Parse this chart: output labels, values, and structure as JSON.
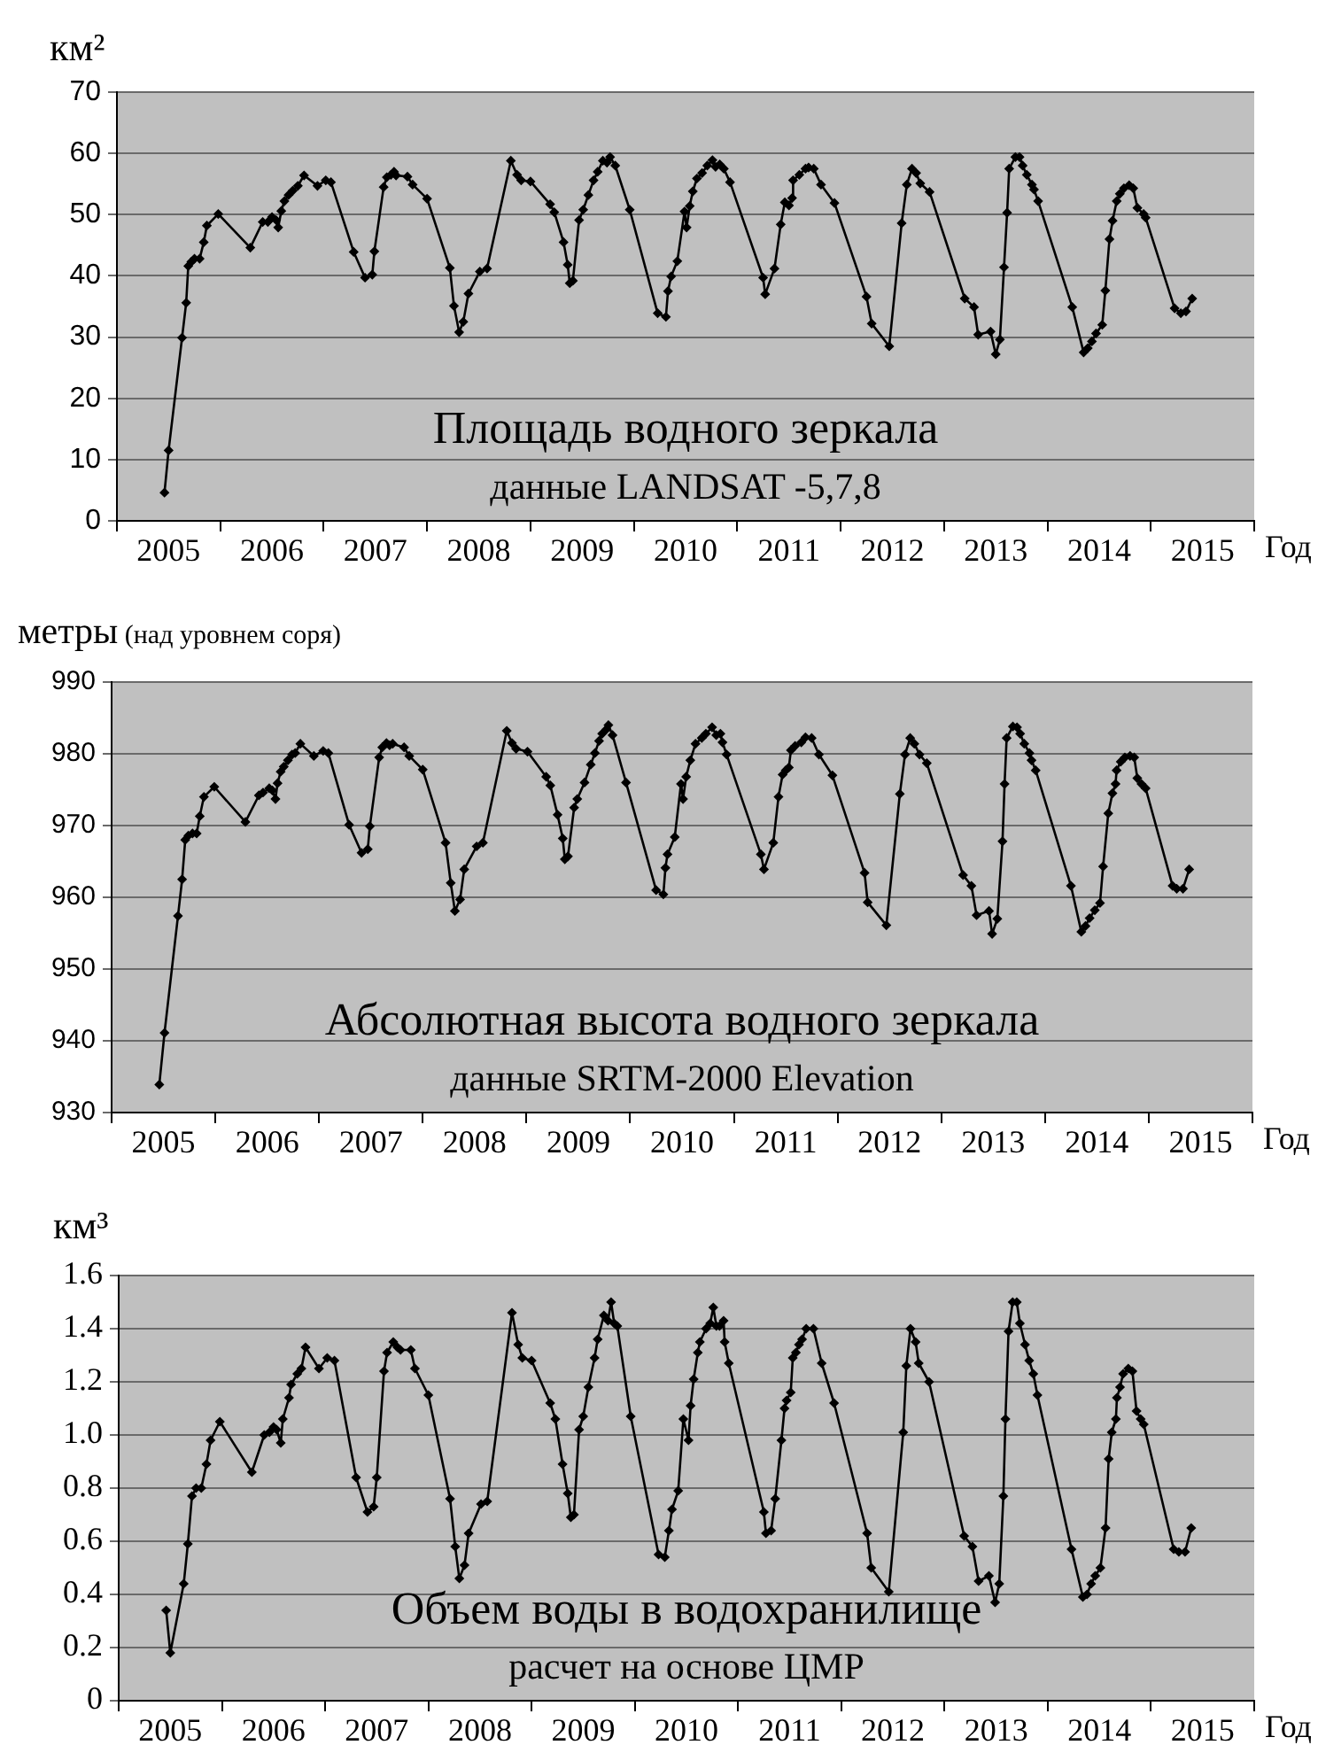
{
  "chart_data": [
    {
      "type": "line",
      "title": "Площадь водного зеркала",
      "annotations": [
        "данные LANDSAT -5,7,8"
      ],
      "ylabel": "км²",
      "xlabel": "Год",
      "color": "#000000",
      "marker": "diamond",
      "line_style": "solid",
      "grid": "y",
      "xlim": [
        2005,
        2016
      ],
      "xticks": [
        {
          "value": 2005,
          "label": null
        },
        {
          "value": 2005.5,
          "label": "2005"
        },
        {
          "value": 2006,
          "label": null
        },
        {
          "value": 2006.5,
          "label": "2006"
        },
        {
          "value": 2007,
          "label": null
        },
        {
          "value": 2007.5,
          "label": "2007"
        },
        {
          "value": 2008,
          "label": null
        },
        {
          "value": 2008.5,
          "label": "2008"
        },
        {
          "value": 2009,
          "label": null
        },
        {
          "value": 2009.5,
          "label": "2009"
        },
        {
          "value": 2010,
          "label": null
        },
        {
          "value": 2010.5,
          "label": "2010"
        },
        {
          "value": 2011,
          "label": null
        },
        {
          "value": 2011.5,
          "label": "2011"
        },
        {
          "value": 2012,
          "label": null
        },
        {
          "value": 2012.5,
          "label": "2012"
        },
        {
          "value": 2013,
          "label": null
        },
        {
          "value": 2013.5,
          "label": "2013"
        },
        {
          "value": 2014,
          "label": null
        },
        {
          "value": 2014.5,
          "label": "2014"
        },
        {
          "value": 2015,
          "label": null
        },
        {
          "value": 2015.5,
          "label": "2015"
        },
        {
          "value": 2016,
          "label": null
        }
      ],
      "ylim": [
        0,
        70
      ],
      "yticks": [
        0,
        10,
        20,
        30,
        40,
        50,
        60,
        70
      ],
      "x": [
        2005.46,
        2005.5,
        2005.63,
        2005.67,
        2005.69,
        2005.72,
        2005.75,
        2005.8,
        2005.84,
        2005.87,
        2005.98,
        2006.29,
        2006.41,
        2006.46,
        2006.5,
        2006.54,
        2006.56,
        2006.59,
        2006.62,
        2006.66,
        2006.7,
        2006.75,
        2006.81,
        2006.94,
        2007.02,
        2007.07,
        2007.29,
        2007.4,
        2007.47,
        2007.49,
        2007.58,
        2007.61,
        2007.65,
        2007.68,
        2007.7,
        2007.81,
        2007.86,
        2008.0,
        2008.22,
        2008.26,
        2008.31,
        2008.35,
        2008.4,
        2008.51,
        2008.58,
        2008.81,
        2008.87,
        2008.91,
        2009.0,
        2009.19,
        2009.23,
        2009.32,
        2009.36,
        2009.38,
        2009.41,
        2009.47,
        2009.51,
        2009.56,
        2009.61,
        2009.65,
        2009.7,
        2009.74,
        2009.77,
        2009.82,
        2009.96,
        2010.23,
        2010.31,
        2010.33,
        2010.36,
        2010.42,
        2010.49,
        2010.51,
        2010.54,
        2010.57,
        2010.61,
        2010.66,
        2010.71,
        2010.76,
        2010.79,
        2010.83,
        2010.87,
        2010.93,
        2011.25,
        2011.27,
        2011.36,
        2011.42,
        2011.46,
        2011.5,
        2011.53,
        2011.54,
        2011.6,
        2011.66,
        2011.69,
        2011.74,
        2011.81,
        2011.94,
        2012.25,
        2012.3,
        2012.47,
        2012.59,
        2012.64,
        2012.69,
        2012.73,
        2012.77,
        2012.86,
        2013.2,
        2013.29,
        2013.33,
        2013.45,
        2013.5,
        2013.54,
        2013.58,
        2013.61,
        2013.63,
        2013.69,
        2013.73,
        2013.76,
        2013.8,
        2013.85,
        2013.87,
        2013.91,
        2014.24,
        2014.35,
        2014.39,
        2014.43,
        2014.47,
        2014.53,
        2014.56,
        2014.6,
        2014.63,
        2014.67,
        2014.7,
        2014.74,
        2014.79,
        2014.83,
        2014.87,
        2014.93,
        2014.95,
        2015.23,
        2015.29,
        2015.34,
        2015.4
      ],
      "values": [
        4.6,
        11.5,
        29.9,
        35.6,
        41.6,
        42.3,
        42.8,
        42.8,
        45.5,
        48.2,
        50.1,
        44.6,
        48.8,
        48.8,
        49.6,
        49.1,
        47.9,
        50.6,
        52.2,
        53.2,
        53.9,
        54.7,
        56.4,
        54.7,
        55.6,
        55.3,
        43.9,
        39.7,
        40.2,
        44.0,
        54.5,
        56.1,
        56.5,
        57.0,
        56.4,
        56.2,
        54.9,
        52.6,
        41.3,
        35.1,
        30.8,
        32.5,
        37.1,
        40.7,
        41.2,
        58.8,
        56.5,
        55.6,
        55.4,
        51.7,
        50.4,
        45.5,
        41.8,
        38.8,
        39.2,
        49.1,
        50.8,
        53.2,
        55.6,
        57.0,
        58.8,
        58.5,
        59.4,
        58.0,
        50.8,
        33.9,
        33.3,
        37.5,
        39.9,
        42.4,
        50.5,
        47.9,
        51.4,
        53.8,
        55.9,
        56.8,
        58.0,
        58.9,
        57.8,
        58.2,
        57.5,
        55.3,
        39.7,
        37.0,
        41.2,
        48.4,
        52.0,
        51.5,
        52.7,
        55.6,
        56.5,
        57.5,
        57.7,
        57.5,
        54.9,
        51.9,
        36.6,
        32.2,
        28.5,
        48.6,
        54.9,
        57.5,
        56.8,
        55.1,
        53.7,
        36.3,
        34.9,
        30.4,
        30.9,
        27.2,
        29.6,
        41.4,
        50.3,
        57.5,
        59.4,
        59.4,
        58.0,
        56.5,
        54.9,
        54.1,
        52.2,
        34.9,
        27.5,
        28.2,
        29.3,
        30.6,
        32.0,
        37.6,
        46.0,
        49.0,
        52.2,
        53.4,
        54.3,
        54.8,
        54.3,
        51.1,
        50.1,
        49.5,
        34.7,
        33.9,
        34.2,
        36.3
      ]
    },
    {
      "type": "line",
      "title": "Абсолютная высота водного зеркала",
      "annotations": [
        "данные SRTM-2000 Elevation"
      ],
      "ylabel": "метры (над уровнем соря)",
      "xlabel": "Год",
      "color": "#000000",
      "marker": "diamond",
      "line_style": "solid",
      "grid": "y",
      "xlim": [
        2005,
        2016
      ],
      "xticks": [
        {
          "value": 2005,
          "label": null
        },
        {
          "value": 2005.5,
          "label": "2005"
        },
        {
          "value": 2006,
          "label": null
        },
        {
          "value": 2006.5,
          "label": "2006"
        },
        {
          "value": 2007,
          "label": null
        },
        {
          "value": 2007.5,
          "label": "2007"
        },
        {
          "value": 2008,
          "label": null
        },
        {
          "value": 2008.5,
          "label": "2008"
        },
        {
          "value": 2009,
          "label": null
        },
        {
          "value": 2009.5,
          "label": "2009"
        },
        {
          "value": 2010,
          "label": null
        },
        {
          "value": 2010.5,
          "label": "2010"
        },
        {
          "value": 2011,
          "label": null
        },
        {
          "value": 2011.5,
          "label": "2011"
        },
        {
          "value": 2012,
          "label": null
        },
        {
          "value": 2012.5,
          "label": "2012"
        },
        {
          "value": 2013,
          "label": null
        },
        {
          "value": 2013.5,
          "label": "2013"
        },
        {
          "value": 2014,
          "label": null
        },
        {
          "value": 2014.5,
          "label": "2014"
        },
        {
          "value": 2015,
          "label": null
        },
        {
          "value": 2015.5,
          "label": "2015"
        },
        {
          "value": 2016,
          "label": null
        }
      ],
      "ylim": [
        930,
        990
      ],
      "yticks": [
        930,
        940,
        950,
        960,
        970,
        980,
        990
      ],
      "x": [
        2005.46,
        2005.51,
        2005.64,
        2005.68,
        2005.71,
        2005.74,
        2005.78,
        2005.82,
        2005.85,
        2005.89,
        2005.99,
        2006.29,
        2006.42,
        2006.46,
        2006.52,
        2006.55,
        2006.58,
        2006.6,
        2006.63,
        2006.66,
        2006.7,
        2006.74,
        2006.77,
        2006.82,
        2006.95,
        2007.04,
        2007.09,
        2007.29,
        2007.41,
        2007.47,
        2007.49,
        2007.58,
        2007.61,
        2007.65,
        2007.68,
        2007.71,
        2007.82,
        2007.87,
        2008.0,
        2008.22,
        2008.27,
        2008.31,
        2008.36,
        2008.4,
        2008.52,
        2008.58,
        2008.81,
        2008.86,
        2008.9,
        2009.01,
        2009.19,
        2009.23,
        2009.3,
        2009.35,
        2009.37,
        2009.4,
        2009.46,
        2009.49,
        2009.56,
        2009.62,
        2009.66,
        2009.7,
        2009.73,
        2009.77,
        2009.79,
        2009.83,
        2009.96,
        2010.25,
        2010.32,
        2010.34,
        2010.36,
        2010.43,
        2010.49,
        2010.51,
        2010.54,
        2010.58,
        2010.63,
        2010.69,
        2010.73,
        2010.79,
        2010.83,
        2010.87,
        2010.89,
        2010.93,
        2011.26,
        2011.29,
        2011.38,
        2011.43,
        2011.47,
        2011.5,
        2011.53,
        2011.55,
        2011.59,
        2011.65,
        2011.69,
        2011.75,
        2011.82,
        2011.95,
        2012.26,
        2012.29,
        2012.47,
        2012.6,
        2012.65,
        2012.7,
        2012.74,
        2012.79,
        2012.86,
        2013.21,
        2013.29,
        2013.34,
        2013.46,
        2013.49,
        2013.54,
        2013.59,
        2013.61,
        2013.63,
        2013.69,
        2013.73,
        2013.76,
        2013.8,
        2013.85,
        2013.87,
        2013.91,
        2014.25,
        2014.35,
        2014.39,
        2014.43,
        2014.48,
        2014.53,
        2014.56,
        2014.61,
        2014.65,
        2014.68,
        2014.69,
        2014.73,
        2014.77,
        2014.82,
        2014.86,
        2014.89,
        2014.93,
        2014.97,
        2015.23,
        2015.27,
        2015.33,
        2015.39
      ],
      "values": [
        933.9,
        941.1,
        957.4,
        962.5,
        968.0,
        968.6,
        968.9,
        968.9,
        971.3,
        974.0,
        975.4,
        970.5,
        974.2,
        974.6,
        975.2,
        974.9,
        973.7,
        975.9,
        977.5,
        978.2,
        979.1,
        979.9,
        980.1,
        981.4,
        979.7,
        980.4,
        980.1,
        970.1,
        966.2,
        966.7,
        969.9,
        979.5,
        980.9,
        981.5,
        981.2,
        981.4,
        980.9,
        979.7,
        977.8,
        967.6,
        962.0,
        958.1,
        959.7,
        963.9,
        967.1,
        967.6,
        983.2,
        981.5,
        980.7,
        980.3,
        976.8,
        975.6,
        971.5,
        968.2,
        965.3,
        965.7,
        972.5,
        973.7,
        976.0,
        978.5,
        980.1,
        981.8,
        982.8,
        983.4,
        984.0,
        982.6,
        976.0,
        961.0,
        960.4,
        964.1,
        966.0,
        968.4,
        975.8,
        973.7,
        976.8,
        979.1,
        981.4,
        982.2,
        982.8,
        983.7,
        982.6,
        982.8,
        981.6,
        979.9,
        966.0,
        963.9,
        967.6,
        974.0,
        977.1,
        977.7,
        978.1,
        980.5,
        981.1,
        981.6,
        982.3,
        982.2,
        979.9,
        977.0,
        963.4,
        959.3,
        956.1,
        974.4,
        979.9,
        982.2,
        981.4,
        979.9,
        978.7,
        963.1,
        961.6,
        957.5,
        958.1,
        954.9,
        957.0,
        967.8,
        975.8,
        982.2,
        983.8,
        983.7,
        982.8,
        981.4,
        980.1,
        979.1,
        977.7,
        961.6,
        955.2,
        956.0,
        957.1,
        958.2,
        959.2,
        964.3,
        971.7,
        974.5,
        975.8,
        977.7,
        978.9,
        979.5,
        979.7,
        979.5,
        976.6,
        975.8,
        975.2,
        961.6,
        961.2,
        961.2,
        963.9
      ]
    },
    {
      "type": "line",
      "title": "Объем воды в водохранилище",
      "annotations": [
        "расчет на основе ЦМР"
      ],
      "ylabel": "км³",
      "xlabel": "Год",
      "color": "#000000",
      "marker": "diamond",
      "line_style": "solid",
      "grid": "y",
      "xlim": [
        2005,
        2016
      ],
      "xticks": [
        {
          "value": 2005,
          "label": null
        },
        {
          "value": 2005.5,
          "label": "2005"
        },
        {
          "value": 2006,
          "label": null
        },
        {
          "value": 2006.5,
          "label": "2006"
        },
        {
          "value": 2007,
          "label": null
        },
        {
          "value": 2007.5,
          "label": "2007"
        },
        {
          "value": 2008,
          "label": null
        },
        {
          "value": 2008.5,
          "label": "2008"
        },
        {
          "value": 2009,
          "label": null
        },
        {
          "value": 2009.5,
          "label": "2009"
        },
        {
          "value": 2010,
          "label": null
        },
        {
          "value": 2010.5,
          "label": "2010"
        },
        {
          "value": 2011,
          "label": null
        },
        {
          "value": 2011.5,
          "label": "2011"
        },
        {
          "value": 2012,
          "label": null
        },
        {
          "value": 2012.5,
          "label": "2012"
        },
        {
          "value": 2013,
          "label": null
        },
        {
          "value": 2013.5,
          "label": "2013"
        },
        {
          "value": 2014,
          "label": null
        },
        {
          "value": 2014.5,
          "label": "2014"
        },
        {
          "value": 2015,
          "label": null
        },
        {
          "value": 2015.5,
          "label": "2015"
        },
        {
          "value": 2016,
          "label": null
        }
      ],
      "ylim": [
        0,
        1.6
      ],
      "yticks": [
        0,
        0.2,
        0.4,
        0.6,
        0.8,
        {
          "value": 1,
          "label": "1.0"
        },
        1.2,
        1.4,
        1.6
      ],
      "x": [
        2005.46,
        2005.5,
        2005.63,
        2005.67,
        2005.71,
        2005.75,
        2005.8,
        2005.85,
        2005.89,
        2005.98,
        2006.29,
        2006.41,
        2006.46,
        2006.5,
        2006.53,
        2006.57,
        2006.59,
        2006.65,
        2006.67,
        2006.73,
        2006.77,
        2006.81,
        2006.94,
        2007.02,
        2007.09,
        2007.3,
        2007.41,
        2007.47,
        2007.5,
        2007.57,
        2007.6,
        2007.66,
        2007.7,
        2007.73,
        2007.83,
        2007.87,
        2008.0,
        2008.21,
        2008.26,
        2008.3,
        2008.35,
        2008.39,
        2008.51,
        2008.57,
        2008.81,
        2008.87,
        2008.91,
        2009.0,
        2009.18,
        2009.23,
        2009.3,
        2009.35,
        2009.38,
        2009.41,
        2009.46,
        2009.5,
        2009.55,
        2009.61,
        2009.64,
        2009.7,
        2009.74,
        2009.77,
        2009.8,
        2009.83,
        2009.96,
        2010.23,
        2010.29,
        2010.33,
        2010.36,
        2010.42,
        2010.47,
        2010.52,
        2010.54,
        2010.57,
        2010.61,
        2010.63,
        2010.69,
        2010.73,
        2010.76,
        2010.79,
        2010.82,
        2010.86,
        2010.87,
        2010.91,
        2011.25,
        2011.27,
        2011.32,
        2011.36,
        2011.42,
        2011.45,
        2011.47,
        2011.51,
        2011.53,
        2011.56,
        2011.59,
        2011.62,
        2011.66,
        2011.73,
        2011.81,
        2011.93,
        2012.25,
        2012.29,
        2012.46,
        2012.6,
        2012.63,
        2012.67,
        2012.72,
        2012.75,
        2012.85,
        2013.19,
        2013.27,
        2013.33,
        2013.43,
        2013.49,
        2013.53,
        2013.57,
        2013.59,
        2013.62,
        2013.66,
        2013.7,
        2013.73,
        2013.78,
        2013.82,
        2013.86,
        2013.9,
        2014.23,
        2014.34,
        2014.38,
        2014.42,
        2014.46,
        2014.51,
        2014.56,
        2014.59,
        2014.62,
        2014.66,
        2014.67,
        2014.7,
        2014.73,
        2014.78,
        2014.82,
        2014.86,
        2014.9,
        2014.93,
        2015.22,
        2015.27,
        2015.33,
        2015.39
      ],
      "values": [
        0.34,
        0.18,
        0.44,
        0.59,
        0.77,
        0.8,
        0.8,
        0.89,
        0.98,
        1.05,
        0.86,
        1.0,
        1.01,
        1.03,
        1.02,
        0.97,
        1.06,
        1.14,
        1.19,
        1.23,
        1.25,
        1.33,
        1.25,
        1.29,
        1.28,
        0.84,
        0.71,
        0.73,
        0.84,
        1.24,
        1.31,
        1.35,
        1.33,
        1.32,
        1.32,
        1.25,
        1.15,
        0.76,
        0.58,
        0.46,
        0.51,
        0.63,
        0.74,
        0.75,
        1.46,
        1.34,
        1.29,
        1.28,
        1.12,
        1.06,
        0.89,
        0.78,
        0.69,
        0.7,
        1.02,
        1.07,
        1.18,
        1.29,
        1.36,
        1.45,
        1.43,
        1.5,
        1.42,
        1.41,
        1.07,
        0.55,
        0.54,
        0.64,
        0.72,
        0.79,
        1.06,
        0.98,
        1.11,
        1.21,
        1.31,
        1.35,
        1.4,
        1.42,
        1.48,
        1.41,
        1.41,
        1.43,
        1.35,
        1.27,
        0.71,
        0.63,
        0.64,
        0.76,
        0.98,
        1.1,
        1.13,
        1.16,
        1.29,
        1.31,
        1.34,
        1.36,
        1.4,
        1.4,
        1.27,
        1.12,
        0.63,
        0.5,
        0.41,
        1.01,
        1.26,
        1.4,
        1.35,
        1.27,
        1.2,
        0.62,
        0.58,
        0.45,
        0.47,
        0.37,
        0.44,
        0.77,
        1.06,
        1.39,
        1.5,
        1.5,
        1.42,
        1.34,
        1.28,
        1.23,
        1.15,
        0.57,
        0.39,
        0.4,
        0.44,
        0.47,
        0.5,
        0.65,
        0.91,
        1.01,
        1.06,
        1.14,
        1.18,
        1.23,
        1.25,
        1.24,
        1.09,
        1.06,
        1.04,
        0.57,
        0.56,
        0.56,
        0.65
      ]
    }
  ]
}
